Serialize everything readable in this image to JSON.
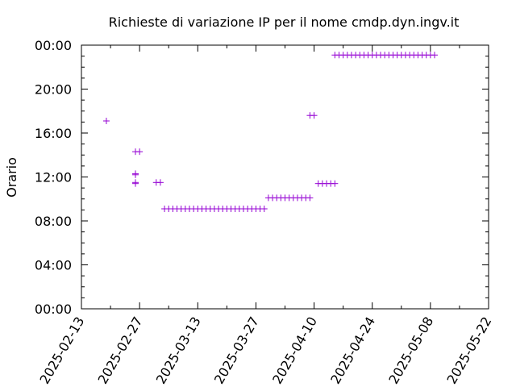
{
  "chart_data": {
    "type": "scatter",
    "title": "Richieste di variazione IP per il nome cmdp.dyn.ingv.it",
    "xlabel": "",
    "ylabel": "Orario",
    "x_unit": "day offset from 2025-02-13",
    "y_unit": "hours of day",
    "xlim": [
      0,
      98
    ],
    "ylim": [
      0,
      24
    ],
    "x_tick_values": [
      0,
      14,
      28,
      42,
      56,
      70,
      84,
      98
    ],
    "x_tick_labels": [
      "2025-02-13",
      "2025-02-27",
      "2025-03-13",
      "2025-03-27",
      "2025-04-10",
      "2025-04-24",
      "2025-05-08",
      "2025-05-22"
    ],
    "y_tick_values": [
      0,
      4,
      8,
      12,
      16,
      20,
      24
    ],
    "y_tick_labels": [
      "00:00",
      "04:00",
      "08:00",
      "12:00",
      "16:00",
      "20:00",
      "00:00"
    ],
    "marker": "+",
    "grid": false,
    "series": [
      {
        "name": "Richieste",
        "color": "#9400d3",
        "points": [
          {
            "x": 6,
            "y": 17.1
          },
          {
            "x": 13,
            "y": 14.3
          },
          {
            "x": 14,
            "y": 14.3
          },
          {
            "x": 13,
            "y": 12.3
          },
          {
            "x": 13,
            "y": 12.2
          },
          {
            "x": 13,
            "y": 11.5
          },
          {
            "x": 13,
            "y": 11.4
          },
          {
            "x": 18,
            "y": 11.5
          },
          {
            "x": 19,
            "y": 11.5
          },
          {
            "x": 20,
            "y": 9.1
          },
          {
            "x": 21,
            "y": 9.1
          },
          {
            "x": 22,
            "y": 9.1
          },
          {
            "x": 23,
            "y": 9.1
          },
          {
            "x": 24,
            "y": 9.1
          },
          {
            "x": 25,
            "y": 9.1
          },
          {
            "x": 26,
            "y": 9.1
          },
          {
            "x": 27,
            "y": 9.1
          },
          {
            "x": 28,
            "y": 9.1
          },
          {
            "x": 29,
            "y": 9.1
          },
          {
            "x": 30,
            "y": 9.1
          },
          {
            "x": 31,
            "y": 9.1
          },
          {
            "x": 32,
            "y": 9.1
          },
          {
            "x": 33,
            "y": 9.1
          },
          {
            "x": 34,
            "y": 9.1
          },
          {
            "x": 35,
            "y": 9.1
          },
          {
            "x": 36,
            "y": 9.1
          },
          {
            "x": 37,
            "y": 9.1
          },
          {
            "x": 38,
            "y": 9.1
          },
          {
            "x": 39,
            "y": 9.1
          },
          {
            "x": 40,
            "y": 9.1
          },
          {
            "x": 41,
            "y": 9.1
          },
          {
            "x": 42,
            "y": 9.1
          },
          {
            "x": 43,
            "y": 9.1
          },
          {
            "x": 44,
            "y": 9.1
          },
          {
            "x": 45,
            "y": 10.1
          },
          {
            "x": 46,
            "y": 10.1
          },
          {
            "x": 47,
            "y": 10.1
          },
          {
            "x": 48,
            "y": 10.1
          },
          {
            "x": 49,
            "y": 10.1
          },
          {
            "x": 50,
            "y": 10.1
          },
          {
            "x": 51,
            "y": 10.1
          },
          {
            "x": 52,
            "y": 10.1
          },
          {
            "x": 53,
            "y": 10.1
          },
          {
            "x": 54,
            "y": 10.1
          },
          {
            "x": 55,
            "y": 10.1
          },
          {
            "x": 55,
            "y": 17.6
          },
          {
            "x": 56,
            "y": 17.6
          },
          {
            "x": 57,
            "y": 11.4
          },
          {
            "x": 58,
            "y": 11.4
          },
          {
            "x": 59,
            "y": 11.4
          },
          {
            "x": 60,
            "y": 11.4
          },
          {
            "x": 61,
            "y": 11.4
          },
          {
            "x": 61,
            "y": 23.1
          },
          {
            "x": 62,
            "y": 23.1
          },
          {
            "x": 63,
            "y": 23.1
          },
          {
            "x": 64,
            "y": 23.1
          },
          {
            "x": 65,
            "y": 23.1
          },
          {
            "x": 66,
            "y": 23.1
          },
          {
            "x": 67,
            "y": 23.1
          },
          {
            "x": 68,
            "y": 23.1
          },
          {
            "x": 69,
            "y": 23.1
          },
          {
            "x": 70,
            "y": 23.1
          },
          {
            "x": 71,
            "y": 23.1
          },
          {
            "x": 72,
            "y": 23.1
          },
          {
            "x": 73,
            "y": 23.1
          },
          {
            "x": 74,
            "y": 23.1
          },
          {
            "x": 75,
            "y": 23.1
          },
          {
            "x": 76,
            "y": 23.1
          },
          {
            "x": 77,
            "y": 23.1
          },
          {
            "x": 78,
            "y": 23.1
          },
          {
            "x": 79,
            "y": 23.1
          },
          {
            "x": 80,
            "y": 23.1
          },
          {
            "x": 81,
            "y": 23.1
          },
          {
            "x": 82,
            "y": 23.1
          },
          {
            "x": 83,
            "y": 23.1
          },
          {
            "x": 84,
            "y": 23.1
          },
          {
            "x": 85,
            "y": 23.1
          }
        ]
      }
    ]
  }
}
